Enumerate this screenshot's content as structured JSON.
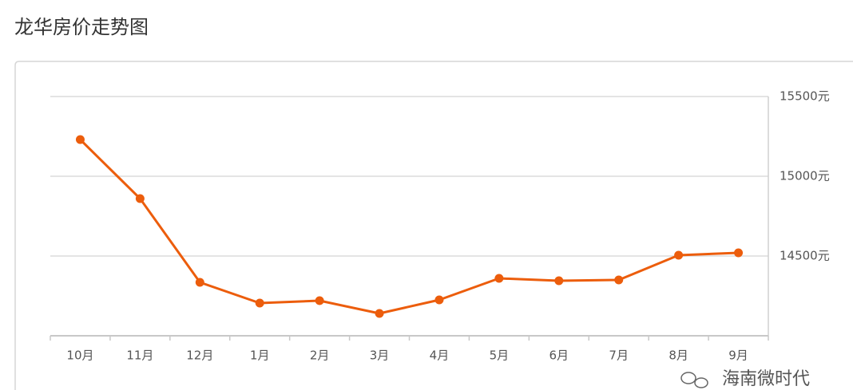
{
  "chart_data": {
    "type": "line",
    "title": "龙华房价走势图",
    "categories": [
      "10月",
      "11月",
      "12月",
      "1月",
      "2月",
      "3月",
      "4月",
      "5月",
      "6月",
      "7月",
      "8月",
      "9月"
    ],
    "series": [
      {
        "color": "#ec5d0c",
        "values": [
          15230,
          14860,
          14335,
          14205,
          14220,
          14140,
          14225,
          14360,
          14345,
          14350,
          14505,
          14520
        ]
      }
    ],
    "ylim": [
      14000,
      15500
    ],
    "yticks": [
      {
        "value": 15500,
        "label": "15500元"
      },
      {
        "value": 15000,
        "label": "15000元"
      },
      {
        "value": 14500,
        "label": "14500元"
      }
    ],
    "grid": true,
    "y_axis_side": "right",
    "watermark": "海南微时代"
  }
}
